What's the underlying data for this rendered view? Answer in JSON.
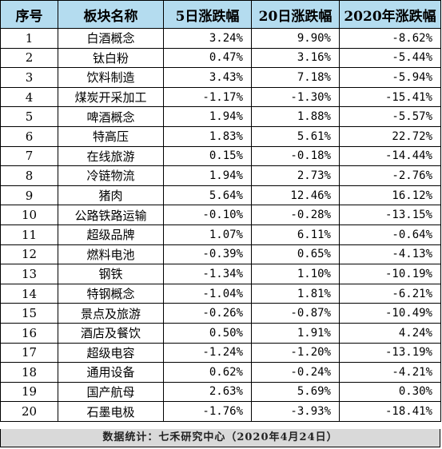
{
  "table": {
    "headers": [
      "序号",
      "板块名称",
      "5日涨跌幅",
      "20日涨跌幅",
      "2020年涨跌幅"
    ],
    "rows": [
      {
        "idx": "1",
        "name": "白酒概念",
        "d5": "3.24%",
        "d20": "9.90%",
        "y2020": "-8.62%"
      },
      {
        "idx": "2",
        "name": "钛白粉",
        "d5": "0.47%",
        "d20": "3.16%",
        "y2020": "-5.44%"
      },
      {
        "idx": "3",
        "name": "饮料制造",
        "d5": "3.43%",
        "d20": "7.18%",
        "y2020": "-5.94%"
      },
      {
        "idx": "4",
        "name": "煤炭开采加工",
        "d5": "-1.17%",
        "d20": "-1.30%",
        "y2020": "-15.41%"
      },
      {
        "idx": "5",
        "name": "啤酒概念",
        "d5": "1.94%",
        "d20": "1.88%",
        "y2020": "-5.57%"
      },
      {
        "idx": "6",
        "name": "特高压",
        "d5": "1.83%",
        "d20": "5.61%",
        "y2020": "22.72%"
      },
      {
        "idx": "7",
        "name": "在线旅游",
        "d5": "0.15%",
        "d20": "-0.18%",
        "y2020": "-14.44%"
      },
      {
        "idx": "8",
        "name": "冷链物流",
        "d5": "1.94%",
        "d20": "2.73%",
        "y2020": "-2.76%"
      },
      {
        "idx": "9",
        "name": "猪肉",
        "d5": "5.64%",
        "d20": "12.46%",
        "y2020": "16.12%"
      },
      {
        "idx": "10",
        "name": "公路铁路运输",
        "d5": "-0.10%",
        "d20": "-0.28%",
        "y2020": "-13.15%"
      },
      {
        "idx": "11",
        "name": "超级品牌",
        "d5": "1.07%",
        "d20": "6.11%",
        "y2020": "-0.64%"
      },
      {
        "idx": "12",
        "name": "燃料电池",
        "d5": "-0.39%",
        "d20": "0.65%",
        "y2020": "-4.13%"
      },
      {
        "idx": "13",
        "name": "钢铁",
        "d5": "-1.34%",
        "d20": "1.10%",
        "y2020": "-10.19%"
      },
      {
        "idx": "14",
        "name": "特钢概念",
        "d5": "-1.04%",
        "d20": "1.81%",
        "y2020": "-6.21%"
      },
      {
        "idx": "15",
        "name": "景点及旅游",
        "d5": "-0.26%",
        "d20": "-0.87%",
        "y2020": "-10.49%"
      },
      {
        "idx": "16",
        "name": "酒店及餐饮",
        "d5": "0.50%",
        "d20": "1.91%",
        "y2020": "4.24%"
      },
      {
        "idx": "17",
        "name": "超级电容",
        "d5": "-1.24%",
        "d20": "-1.20%",
        "y2020": "-13.19%"
      },
      {
        "idx": "18",
        "name": "通用设备",
        "d5": "0.62%",
        "d20": "-0.24%",
        "y2020": "-4.21%"
      },
      {
        "idx": "19",
        "name": "国产航母",
        "d5": "2.63%",
        "d20": "5.69%",
        "y2020": "0.30%"
      },
      {
        "idx": "20",
        "name": "石墨电极",
        "d5": "-1.76%",
        "d20": "-3.93%",
        "y2020": "-18.41%"
      }
    ]
  },
  "colors": {
    "header_bg": "#b4dcef",
    "footer_bg": "#d9d9d9"
  },
  "footer": {
    "text": "数据统计：七禾研究中心（2020年4月24日）"
  }
}
